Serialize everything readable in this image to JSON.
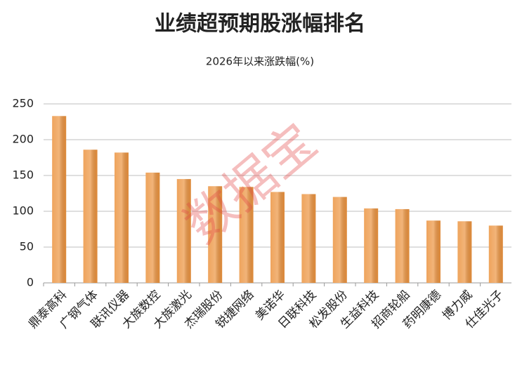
{
  "chart_data": {
    "type": "bar",
    "title": "业绩超预期股涨幅排名",
    "subtitle": "2026年以来涨跌幅(%)",
    "categories": [
      "鼎泰高科",
      "广钢气体",
      "联讯仪器",
      "大族数控",
      "大族激光",
      "杰瑞股份",
      "锐捷网络",
      "美诺华",
      "日联科技",
      "松发股份",
      "生益科技",
      "招商轮船",
      "药明康德",
      "博力威",
      "仕佳光子"
    ],
    "values": [
      233,
      186,
      182,
      154,
      145,
      135,
      134,
      127,
      124,
      120,
      104,
      103,
      87,
      86,
      80
    ],
    "color": "#ec9440",
    "ylim": [
      0,
      250
    ],
    "yticks": [
      0,
      50,
      100,
      150,
      200,
      250
    ],
    "grid": true,
    "watermark": "数据宝"
  }
}
